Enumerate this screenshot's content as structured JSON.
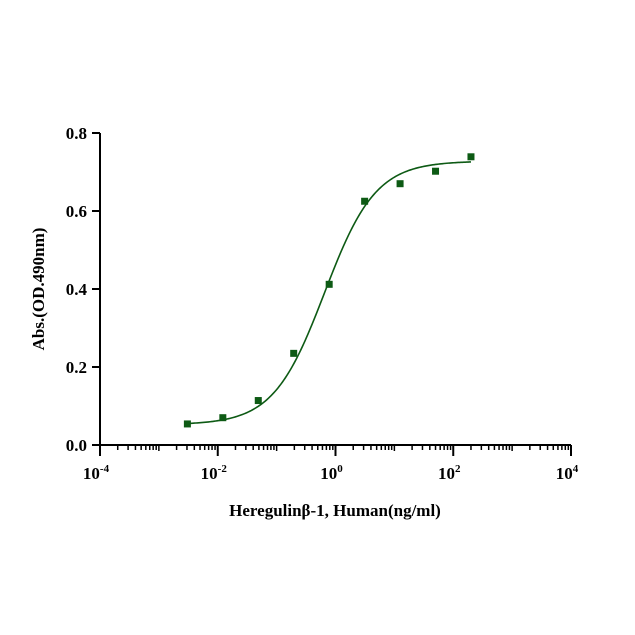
{
  "chart_data": {
    "type": "scatter",
    "title": "",
    "xlabel": "Heregulinβ-1, Human(ng/ml)",
    "ylabel": "Abs.(OD.490nm)",
    "xscale": "log10",
    "xlim": [
      0.0001,
      10000
    ],
    "ylim": [
      0,
      0.8
    ],
    "x_ticks": [
      {
        "value": 0.0001,
        "base": "10",
        "exp": "-4"
      },
      {
        "value": 0.01,
        "base": "10",
        "exp": "-2"
      },
      {
        "value": 1,
        "base": "10",
        "exp": "0"
      },
      {
        "value": 100,
        "base": "10",
        "exp": "2"
      },
      {
        "value": 10000,
        "base": "10",
        "exp": "4"
      }
    ],
    "y_ticks": [
      {
        "value": 0,
        "label": "0.0"
      },
      {
        "value": 0.2,
        "label": "0.2"
      },
      {
        "value": 0.4,
        "label": "0.4"
      },
      {
        "value": 0.6,
        "label": "0.6"
      },
      {
        "value": 0.8,
        "label": "0.8"
      }
    ],
    "grid": false,
    "series": [
      {
        "name": "Heregulinβ-1, Human",
        "color": "#0d5a14",
        "x": [
          0.00305,
          0.0122,
          0.0488,
          0.195,
          0.781,
          3.125,
          12.5,
          50,
          200
        ],
        "y": [
          0.054,
          0.07,
          0.114,
          0.235,
          0.412,
          0.625,
          0.67,
          0.702,
          0.739
        ],
        "fit": {
          "model": "4PL",
          "bottom": 0.052,
          "top": 0.728,
          "ec50": 0.65,
          "hill": 1.0
        }
      }
    ]
  }
}
